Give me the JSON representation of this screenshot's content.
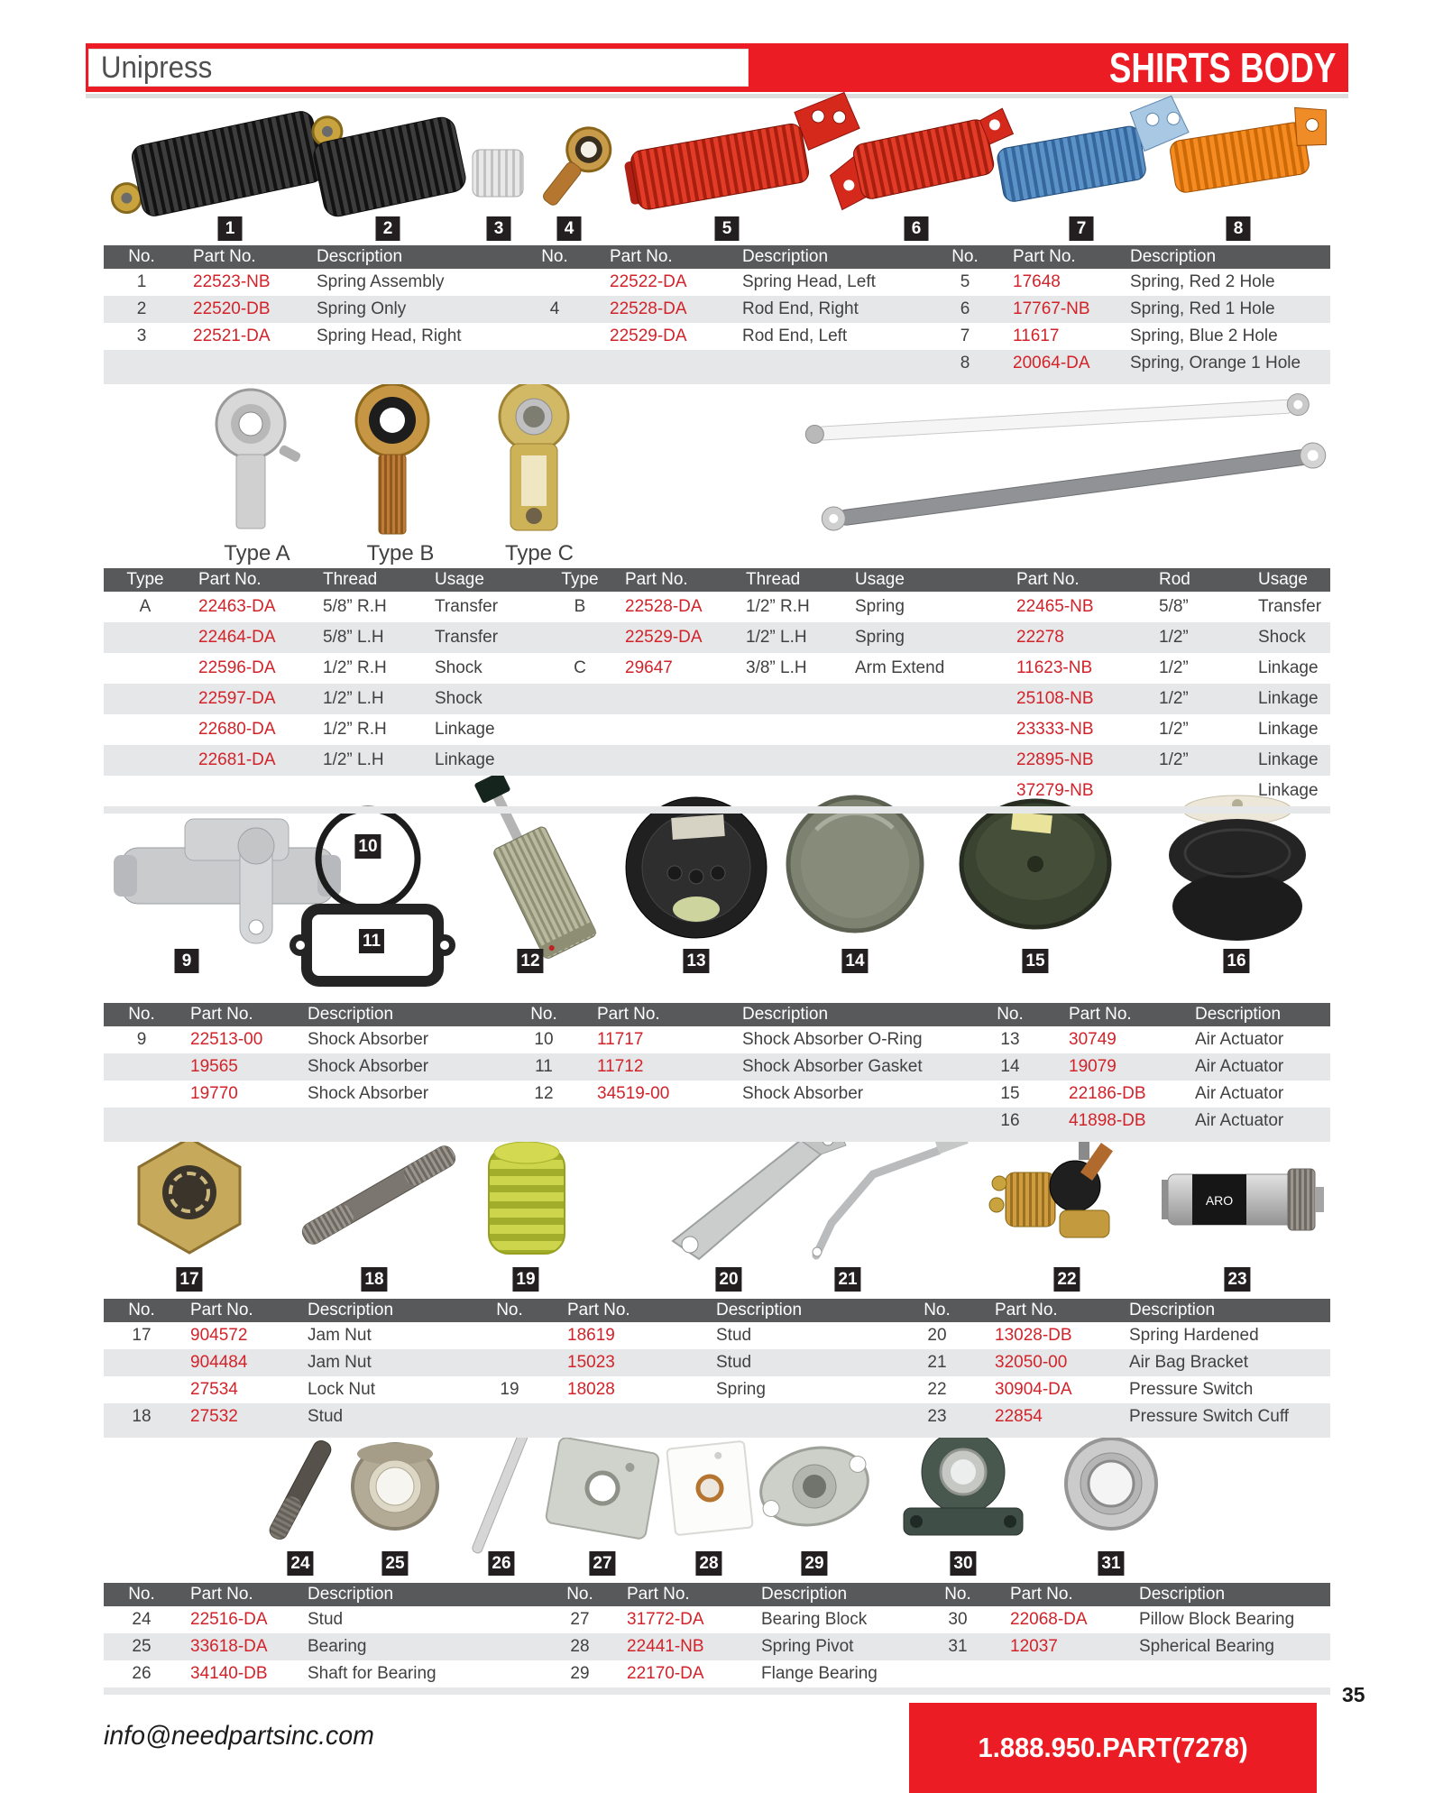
{
  "header": {
    "brand": "Unipress",
    "section": "SHIRTS BODY"
  },
  "footer": {
    "email": "info@needpartsinc.com",
    "phone": "1.888.950.PART(7278)",
    "page": "35"
  },
  "colors": {
    "banner_red": "#EC1C24",
    "part_red": "#D2232A",
    "table_header_gray": "#58595B",
    "row_stripe": "#E6E7E8",
    "tag_black": "#231F20"
  },
  "type_labels": [
    "Type A",
    "Type B",
    "Type C"
  ],
  "item_tags": [
    "1",
    "2",
    "3",
    "4",
    "5",
    "6",
    "7",
    "8",
    "9",
    "10",
    "11",
    "12",
    "13",
    "14",
    "15",
    "16",
    "17",
    "18",
    "19",
    "20",
    "21",
    "22",
    "23",
    "24",
    "25",
    "26",
    "27",
    "28",
    "29",
    "30",
    "31"
  ],
  "images": {
    "aro_label": "ARO"
  },
  "tables": [
    {
      "name": "springs-and-rod-ends",
      "headers": [
        "No.",
        "Part No.",
        "Description",
        "No.",
        "Part No.",
        "Description",
        "No.",
        "Part No.",
        "Description"
      ],
      "rows": [
        [
          "1",
          "22523-NB",
          "Spring Assembly",
          "",
          "22522-DA",
          "Spring Head, Left",
          "5",
          "17648",
          "Spring, Red 2 Hole"
        ],
        [
          "2",
          "22520-DB",
          "Spring Only",
          "4",
          "22528-DA",
          "Rod End, Right",
          "6",
          "17767-NB",
          "Spring, Red 1 Hole"
        ],
        [
          "3",
          "22521-DA",
          "Spring Head, Right",
          "",
          "22529-DA",
          "Rod End, Left",
          "7",
          "11617",
          "Spring, Blue 2 Hole"
        ],
        [
          "",
          "",
          "",
          "",
          "",
          "",
          "8",
          "20064-DA",
          "Spring, Orange 1 Hole"
        ]
      ]
    },
    {
      "name": "rod-end-types",
      "headers": [
        "Type",
        "Part No.",
        "Thread",
        "Usage",
        "Type",
        "Part No.",
        "Thread",
        "Usage",
        "Part No.",
        "Rod",
        "Usage"
      ],
      "rows": [
        [
          "A",
          "22463-DA",
          "5/8” R.H",
          "Transfer",
          "B",
          "22528-DA",
          "1/2” R.H",
          "Spring",
          "22465-NB",
          "5/8”",
          "Transfer"
        ],
        [
          "",
          "22464-DA",
          "5/8” L.H",
          "Transfer",
          "",
          "22529-DA",
          "1/2” L.H",
          "Spring",
          "22278",
          "1/2”",
          "Shock"
        ],
        [
          "",
          "22596-DA",
          "1/2” R.H",
          "Shock",
          "C",
          "29647",
          "3/8” L.H",
          "Arm Extend",
          "11623-NB",
          "1/2”",
          "Linkage"
        ],
        [
          "",
          "22597-DA",
          "1/2” L.H",
          "Shock",
          "",
          "",
          "",
          "",
          "25108-NB",
          "1/2”",
          "Linkage"
        ],
        [
          "",
          "22680-DA",
          "1/2” R.H",
          "Linkage",
          "",
          "",
          "",
          "",
          "23333-NB",
          "1/2”",
          "Linkage"
        ],
        [
          "",
          "22681-DA",
          "1/2” L.H",
          "Linkage",
          "",
          "",
          "",
          "",
          "22895-NB",
          "1/2”",
          "Linkage"
        ],
        [
          "",
          "",
          "",
          "",
          "",
          "",
          "",
          "",
          "37279-NB",
          "",
          "Linkage"
        ]
      ]
    },
    {
      "name": "shock-absorbers-air-actuators",
      "headers": [
        "No.",
        "Part No.",
        "Description",
        "No.",
        "Part No.",
        "Description",
        "No.",
        "Part No.",
        "Description"
      ],
      "rows": [
        [
          "9",
          "22513-00",
          "Shock Absorber",
          "10",
          "11717",
          "Shock Absorber O-Ring",
          "13",
          "30749",
          "Air Actuator"
        ],
        [
          "",
          "19565",
          "Shock Absorber",
          "11",
          "11712",
          "Shock Absorber Gasket",
          "14",
          "19079",
          "Air Actuator"
        ],
        [
          "",
          "19770",
          "Shock Absorber",
          "12",
          "34519-00",
          "Shock Absorber",
          "15",
          "22186-DB",
          "Air Actuator"
        ],
        [
          "",
          "",
          "",
          "",
          "",
          "",
          "16",
          "41898-DB",
          "Air Actuator"
        ]
      ]
    },
    {
      "name": "nuts-studs-springs-switches",
      "headers": [
        "No.",
        "Part No.",
        "Description",
        "No.",
        "Part No.",
        "Description",
        "No.",
        "Part No.",
        "Description"
      ],
      "rows": [
        [
          "17",
          "904572",
          "Jam Nut",
          "",
          "18619",
          "Stud",
          "20",
          "13028-DB",
          "Spring Hardened"
        ],
        [
          "",
          "904484",
          "Jam Nut",
          "",
          "15023",
          "Stud",
          "21",
          "32050-00",
          "Air Bag Bracket"
        ],
        [
          "",
          "27534",
          "Lock Nut",
          "19",
          "18028",
          "Spring",
          "22",
          "30904-DA",
          "Pressure Switch"
        ],
        [
          "18",
          "27532",
          "Stud",
          "",
          "",
          "",
          "23",
          "22854",
          "Pressure Switch Cuff"
        ]
      ]
    },
    {
      "name": "bearings",
      "headers": [
        "No.",
        "Part No.",
        "Description",
        "No.",
        "Part No.",
        "Description",
        "No.",
        "Part No.",
        "Description"
      ],
      "rows": [
        [
          "24",
          "22516-DA",
          "Stud",
          "27",
          "31772-DA",
          "Bearing Block",
          "30",
          "22068-DA",
          "Pillow Block Bearing"
        ],
        [
          "25",
          "33618-DA",
          "Bearing",
          "28",
          "22441-NB",
          "Spring Pivot",
          "31",
          "12037",
          "Spherical Bearing"
        ],
        [
          "26",
          "34140-DB",
          "Shaft for Bearing",
          "29",
          "22170-DA",
          "Flange Bearing",
          "",
          "",
          ""
        ]
      ]
    }
  ]
}
